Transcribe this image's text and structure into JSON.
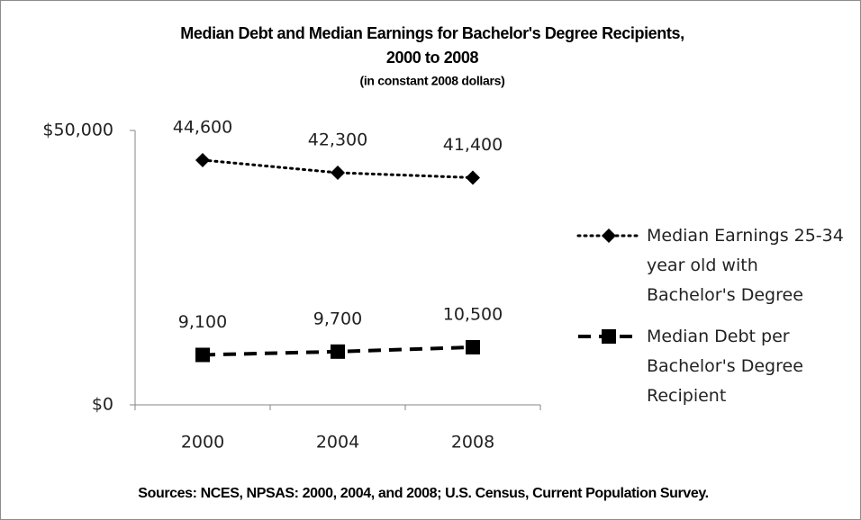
{
  "chart_data": {
    "type": "line",
    "title": [
      "Median Debt and Median Earnings for Bachelor's Degree Recipients,",
      "2000 to 2008"
    ],
    "subtitle": "(in constant 2008 dollars)",
    "source": "Sources: NCES, NPSAS: 2000, 2004, and 2008; U.S. Census, Current Population Survey.",
    "categories": [
      "2000",
      "2004",
      "2008"
    ],
    "series": [
      {
        "name": "Median Earnings 25-34 year old with Bachelor's Degree",
        "color": "#000000",
        "style": "dotted",
        "marker": "diamond",
        "values": [
          44600,
          42300,
          41400
        ],
        "value_labels": [
          "44,600",
          "42,300",
          "41,400"
        ]
      },
      {
        "name": "Median Debt per Bachelor's Degree Recipient",
        "color": "#000000",
        "style": "dashed",
        "marker": "square",
        "values": [
          9100,
          9700,
          10500
        ],
        "value_labels": [
          "9,100",
          "9,700",
          "10,500"
        ]
      }
    ],
    "ylim": [
      0,
      50000
    ],
    "yticks": [
      {
        "value": 0,
        "label": "$0"
      },
      {
        "value": 50000,
        "label": "$50,000"
      }
    ],
    "grid": false,
    "legend": "right"
  }
}
